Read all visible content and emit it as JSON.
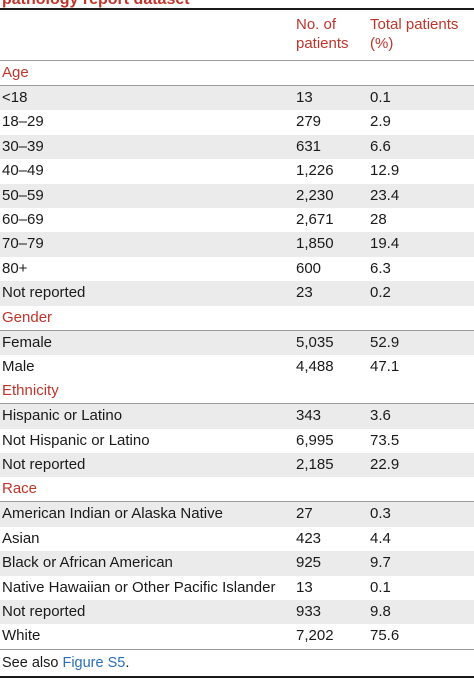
{
  "caption": "pathology report dataset",
  "columns": {
    "patients": "No. of patients",
    "percent": "Total patients (%)"
  },
  "sections": [
    {
      "title": "Age",
      "rows": [
        {
          "label": "<18",
          "n": "13",
          "pct": "0.1"
        },
        {
          "label": "18–29",
          "n": "279",
          "pct": "2.9"
        },
        {
          "label": "30–39",
          "n": "631",
          "pct": "6.6"
        },
        {
          "label": "40–49",
          "n": "1,226",
          "pct": "12.9"
        },
        {
          "label": "50–59",
          "n": "2,230",
          "pct": "23.4"
        },
        {
          "label": "60–69",
          "n": "2,671",
          "pct": "28"
        },
        {
          "label": "70–79",
          "n": "1,850",
          "pct": "19.4"
        },
        {
          "label": "80+",
          "n": "600",
          "pct": "6.3"
        },
        {
          "label": "Not reported",
          "n": "23",
          "pct": "0.2"
        }
      ]
    },
    {
      "title": "Gender",
      "rows": [
        {
          "label": "Female",
          "n": "5,035",
          "pct": "52.9"
        },
        {
          "label": "Male",
          "n": "4,488",
          "pct": "47.1"
        }
      ]
    },
    {
      "title": "Ethnicity",
      "rows": [
        {
          "label": "Hispanic or Latino",
          "n": "343",
          "pct": "3.6"
        },
        {
          "label": "Not Hispanic or Latino",
          "n": "6,995",
          "pct": "73.5"
        },
        {
          "label": "Not reported",
          "n": "2,185",
          "pct": "22.9"
        }
      ]
    },
    {
      "title": "Race",
      "rows": [
        {
          "label": "American Indian or Alaska Native",
          "n": "27",
          "pct": "0.3"
        },
        {
          "label": "Asian",
          "n": "423",
          "pct": "4.4"
        },
        {
          "label": "Black or African American",
          "n": "925",
          "pct": "9.7"
        },
        {
          "label": "Native Hawaiian or Other Pacific Islander",
          "n": "13",
          "pct": "0.1"
        },
        {
          "label": "Not reported",
          "n": "933",
          "pct": "9.8"
        },
        {
          "label": "White",
          "n": "7,202",
          "pct": "75.6"
        }
      ]
    }
  ],
  "footer": {
    "text": "See also ",
    "link": "Figure S5",
    "end": "."
  },
  "colors": {
    "accent": "#c0352b",
    "link": "#2a6fbb",
    "shade": "#ebebeb"
  }
}
